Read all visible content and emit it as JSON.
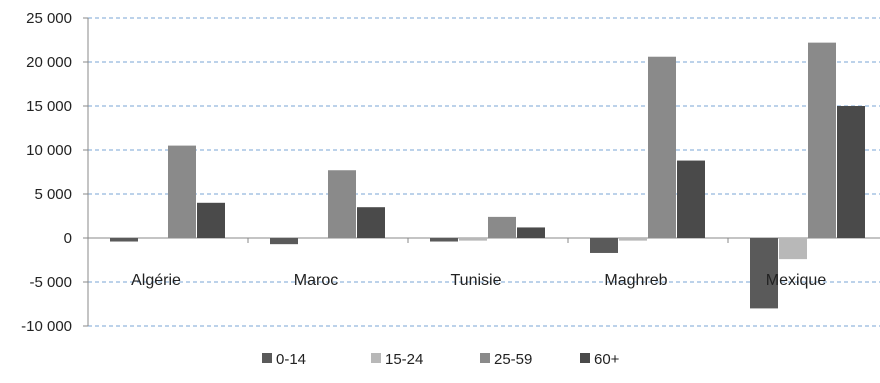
{
  "chart_data": {
    "type": "bar",
    "categories": [
      "Algérie",
      "Maroc",
      "Tunisie",
      "Maghreb",
      "Mexique"
    ],
    "series": [
      {
        "name": "0-14",
        "color": "#5a5a5a",
        "values": [
          -400,
          -700,
          -400,
          -1700,
          -8000
        ]
      },
      {
        "name": "15-24",
        "color": "#b8b8b8",
        "values": [
          0,
          0,
          -300,
          -300,
          -2400
        ]
      },
      {
        "name": "25-59",
        "color": "#8a8a8a",
        "values": [
          10500,
          7700,
          2400,
          20600,
          22200
        ]
      },
      {
        "name": "60+",
        "color": "#4a4a4a",
        "values": [
          4000,
          3500,
          1200,
          8800,
          15000
        ]
      }
    ],
    "ylim": [
      -10000,
      25000
    ],
    "yticks": [
      25000,
      20000,
      15000,
      10000,
      5000,
      0,
      -5000,
      -10000
    ],
    "ytick_labels": [
      "25 000",
      "20 000",
      "15 000",
      "10 000",
      "5 000",
      "0",
      "-5 000",
      "-10 000"
    ],
    "grid": true,
    "grid_color": "#7aa6d6",
    "legend_position": "bottom",
    "title": "",
    "xlabel": "",
    "ylabel": ""
  }
}
